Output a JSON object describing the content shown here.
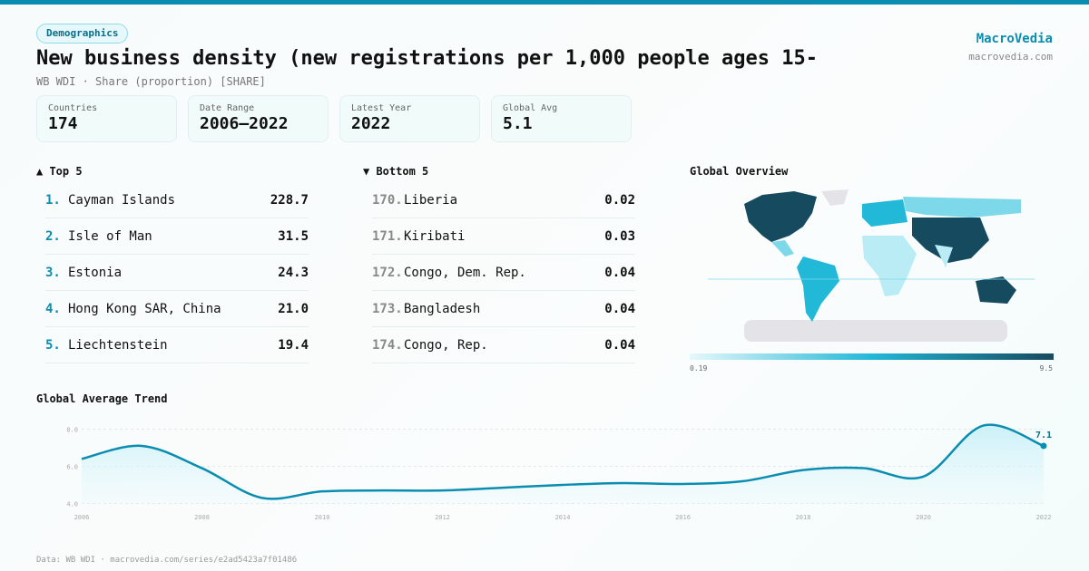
{
  "tag": "Demographics",
  "title": "New business density (new registrations per 1,000 people ages 15-",
  "subtitle": "WB WDI · Share (proportion) [SHARE]",
  "brand": {
    "name": "MacroVedia",
    "url": "macrovedia.com"
  },
  "stats": [
    {
      "label": "Countries",
      "value": "174"
    },
    {
      "label": "Date Range",
      "value": "2006–2022"
    },
    {
      "label": "Latest Year",
      "value": "2022"
    },
    {
      "label": "Global Avg",
      "value": "5.1"
    }
  ],
  "top5": {
    "heading": "▲ Top 5",
    "items": [
      {
        "rank": "1.",
        "name": "Cayman Islands",
        "value": "228.7"
      },
      {
        "rank": "2.",
        "name": "Isle of Man",
        "value": "31.5"
      },
      {
        "rank": "3.",
        "name": "Estonia",
        "value": "24.3"
      },
      {
        "rank": "4.",
        "name": "Hong Kong SAR, China",
        "value": "21.0"
      },
      {
        "rank": "5.",
        "name": "Liechtenstein",
        "value": "19.4"
      }
    ]
  },
  "bottom5": {
    "heading": "▼ Bottom 5",
    "items": [
      {
        "rank": "170.",
        "name": "Liberia",
        "value": "0.02"
      },
      {
        "rank": "171.",
        "name": "Kiribati",
        "value": "0.03"
      },
      {
        "rank": "172.",
        "name": "Congo, Dem. Rep.",
        "value": "0.04"
      },
      {
        "rank": "173.",
        "name": "Bangladesh",
        "value": "0.04"
      },
      {
        "rank": "174.",
        "name": "Congo, Rep.",
        "value": "0.04"
      }
    ]
  },
  "map": {
    "heading": "Global Overview",
    "scale_min": "0.19",
    "scale_max": "9.5",
    "colors": {
      "low": "#e6f8fb",
      "mid": "#22b8d8",
      "high": "#164a5e",
      "nodata": "#e4e4e8"
    }
  },
  "chart_data": {
    "type": "area",
    "title": "Global Average Trend",
    "x": [
      2006,
      2007,
      2008,
      2009,
      2010,
      2011,
      2012,
      2013,
      2014,
      2015,
      2016,
      2017,
      2018,
      2019,
      2020,
      2021,
      2022
    ],
    "values": [
      6.4,
      7.1,
      5.9,
      4.3,
      4.65,
      4.7,
      4.7,
      4.85,
      5.0,
      5.1,
      5.05,
      5.2,
      5.8,
      5.9,
      5.45,
      8.2,
      7.1
    ],
    "yticks": [
      "4.0",
      "6.0",
      "8.0"
    ],
    "xticks": [
      "2006",
      "2008",
      "2010",
      "2012",
      "2014",
      "2016",
      "2018",
      "2020",
      "2022"
    ],
    "ylim": [
      4,
      8.2
    ],
    "last_label": "7.1",
    "grid": true,
    "color": "#0a8db0"
  },
  "footer": "Data: WB WDI · macrovedia.com/series/e2ad5423a7f01486"
}
